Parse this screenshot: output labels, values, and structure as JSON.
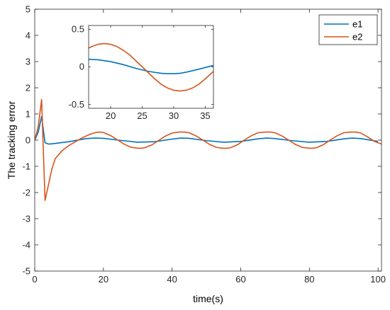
{
  "chart_data": [
    {
      "id": "main",
      "type": "line",
      "title": "",
      "xlabel": "time(s)",
      "ylabel": "The tracking error",
      "xlim": [
        0,
        101
      ],
      "ylim": [
        -5,
        5
      ],
      "xticks": [
        0,
        20,
        40,
        60,
        80,
        100
      ],
      "yticks": [
        -5,
        -4,
        -3,
        -2,
        -1,
        0,
        1,
        2,
        3,
        4,
        5
      ],
      "xtick_labels": [
        "0",
        "20",
        "40",
        "60",
        "80",
        "100"
      ],
      "ytick_labels": [
        "-5",
        "-4",
        "-3",
        "-2",
        "-1",
        "0",
        "1",
        "2",
        "3",
        "4",
        "5"
      ],
      "grid": false,
      "legend_position": "top-right",
      "series": [
        {
          "name": "e1",
          "color": "#0072BD",
          "x": [
            0,
            1,
            2,
            3,
            4,
            5,
            10,
            15,
            17.5,
            20,
            25,
            30,
            35,
            40,
            42.5,
            45,
            50,
            55,
            60,
            65,
            67.5,
            70,
            75,
            80,
            85,
            90,
            92.5,
            95,
            100
          ],
          "y": [
            0,
            0.3,
            0.9,
            -0.1,
            -0.15,
            -0.14,
            -0.06,
            0.06,
            0.08,
            0.07,
            -0.01,
            -0.08,
            -0.06,
            0.04,
            0.08,
            0.07,
            -0.02,
            -0.08,
            -0.05,
            0.05,
            0.08,
            0.06,
            -0.02,
            -0.08,
            -0.05,
            0.05,
            0.08,
            0.06,
            -0.05
          ]
        },
        {
          "name": "e2",
          "color": "#D95319",
          "x": [
            0,
            1,
            2,
            3,
            4,
            5,
            6,
            8,
            10,
            12,
            14,
            16,
            18,
            19,
            20,
            22,
            24,
            26,
            28,
            30,
            31,
            32,
            34,
            36,
            38,
            40,
            42,
            43.5,
            45,
            47,
            49,
            51,
            53,
            55,
            56,
            57,
            59,
            61,
            63,
            65,
            67,
            68.5,
            70,
            72,
            74,
            76,
            78,
            80,
            81,
            82,
            84,
            86,
            88,
            90,
            92,
            93.5,
            95,
            97,
            99,
            101
          ],
          "y": [
            0,
            0.5,
            1.55,
            -2.3,
            -1.7,
            -1.1,
            -0.7,
            -0.4,
            -0.2,
            -0.05,
            0.1,
            0.22,
            0.3,
            0.31,
            0.29,
            0.18,
            0.02,
            -0.15,
            -0.27,
            -0.31,
            -0.31,
            -0.29,
            -0.19,
            -0.02,
            0.15,
            0.27,
            0.31,
            0.31,
            0.28,
            0.16,
            0.0,
            -0.17,
            -0.28,
            -0.31,
            -0.31,
            -0.29,
            -0.18,
            0.0,
            0.16,
            0.28,
            0.31,
            0.31,
            0.28,
            0.16,
            0.0,
            -0.17,
            -0.28,
            -0.31,
            -0.31,
            -0.29,
            -0.18,
            0.0,
            0.16,
            0.28,
            0.31,
            0.31,
            0.27,
            0.12,
            -0.05,
            -0.15
          ]
        }
      ]
    },
    {
      "id": "inset",
      "type": "line",
      "title": "",
      "xlabel": "",
      "ylabel": "",
      "xlim": [
        16.5,
        36.3
      ],
      "ylim": [
        -0.55,
        0.55
      ],
      "xticks": [
        20,
        25,
        30,
        35
      ],
      "yticks": [
        -0.5,
        0,
        0.5
      ],
      "xtick_labels": [
        "20",
        "25",
        "30",
        "35"
      ],
      "ytick_labels": [
        "-0.5",
        "0",
        "0.5"
      ],
      "grid": false,
      "series": [
        {
          "name": "e1",
          "color": "#0072BD",
          "x": [
            16.5,
            18,
            20,
            22,
            24,
            26,
            28,
            29,
            30,
            31,
            32,
            34,
            36.3
          ],
          "y": [
            0.1,
            0.095,
            0.07,
            0.03,
            -0.02,
            -0.06,
            -0.085,
            -0.09,
            -0.09,
            -0.085,
            -0.07,
            -0.03,
            0.02
          ]
        },
        {
          "name": "e2",
          "color": "#D95319",
          "x": [
            16.5,
            17,
            18,
            19,
            20,
            21,
            22,
            23,
            24,
            25,
            26,
            27,
            28,
            29,
            30,
            31,
            32,
            33,
            34,
            35,
            36.3
          ],
          "y": [
            0.25,
            0.27,
            0.3,
            0.31,
            0.3,
            0.27,
            0.22,
            0.16,
            0.08,
            0.0,
            -0.08,
            -0.16,
            -0.23,
            -0.28,
            -0.31,
            -0.32,
            -0.31,
            -0.28,
            -0.23,
            -0.16,
            -0.06
          ]
        }
      ]
    }
  ]
}
